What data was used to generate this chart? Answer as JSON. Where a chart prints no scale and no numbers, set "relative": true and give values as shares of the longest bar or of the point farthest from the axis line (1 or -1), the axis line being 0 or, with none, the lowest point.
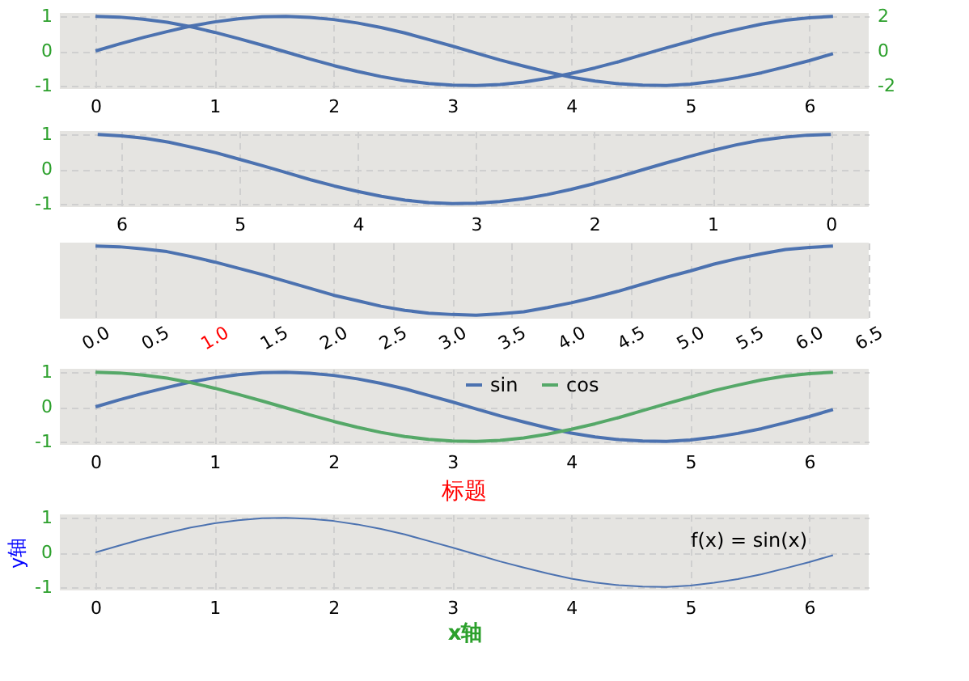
{
  "chart_data": [
    {
      "type": "line",
      "x": [
        0,
        0.2,
        0.4,
        0.6,
        0.8,
        1.0,
        1.2,
        1.4,
        1.6,
        1.8,
        2.0,
        2.2,
        2.4,
        2.6,
        2.8,
        3.0,
        3.2,
        3.4,
        3.6,
        3.8,
        4.0,
        4.2,
        4.4,
        4.6,
        4.8,
        5.0,
        5.2,
        5.4,
        5.6,
        5.8,
        6.0,
        6.2
      ],
      "series": [
        {
          "color": "#4c72b0",
          "values": [
            0,
            0.2,
            0.39,
            0.56,
            0.72,
            0.84,
            0.93,
            0.99,
            1.0,
            0.97,
            0.91,
            0.81,
            0.68,
            0.52,
            0.33,
            0.14,
            -0.06,
            -0.26,
            -0.44,
            -0.61,
            -0.76,
            -0.87,
            -0.95,
            -0.99,
            -1.0,
            -0.96,
            -0.88,
            -0.77,
            -0.63,
            -0.46,
            -0.28,
            -0.08
          ]
        },
        {
          "color": "#4c72b0",
          "values": [
            1,
            0.98,
            0.92,
            0.83,
            0.7,
            0.54,
            0.36,
            0.17,
            -0.03,
            -0.23,
            -0.42,
            -0.59,
            -0.74,
            -0.86,
            -0.94,
            -0.99,
            -1.0,
            -0.97,
            -0.9,
            -0.79,
            -0.65,
            -0.49,
            -0.31,
            -0.11,
            0.09,
            0.28,
            0.47,
            0.63,
            0.78,
            0.89,
            0.96,
            1.0
          ]
        }
      ],
      "xlim": [
        -0.3,
        6.5
      ],
      "xticks": [
        0,
        1,
        2,
        3,
        4,
        5,
        6
      ],
      "ylim": [
        -1.1,
        1.1
      ],
      "yticks": [
        -1,
        0,
        1
      ],
      "y2lim": [
        -2.2,
        2.2
      ],
      "y2ticks": [
        -2,
        0,
        2
      ],
      "grid": true,
      "line_style": "solid"
    },
    {
      "type": "line",
      "x": [
        0,
        0.2,
        0.4,
        0.6,
        0.8,
        1.0,
        1.2,
        1.4,
        1.6,
        1.8,
        2.0,
        2.2,
        2.4,
        2.6,
        2.8,
        3.0,
        3.2,
        3.4,
        3.6,
        3.8,
        4.0,
        4.2,
        4.4,
        4.6,
        4.8,
        5.0,
        5.2,
        5.4,
        5.6,
        5.8,
        6.0,
        6.2
      ],
      "series": [
        {
          "color": "#4c72b0",
          "values": [
            1,
            0.98,
            0.92,
            0.83,
            0.7,
            0.54,
            0.36,
            0.17,
            -0.03,
            -0.23,
            -0.42,
            -0.59,
            -0.74,
            -0.86,
            -0.94,
            -0.99,
            -1.0,
            -0.97,
            -0.9,
            -0.79,
            -0.65,
            -0.49,
            -0.31,
            -0.11,
            0.09,
            0.28,
            0.47,
            0.63,
            0.78,
            0.89,
            0.96,
            1.0
          ]
        }
      ],
      "xlim": [
        6.52,
        -0.32
      ],
      "xticks": [
        0,
        1,
        2,
        3,
        4,
        5,
        6
      ],
      "ylim": [
        -1.1,
        1.1
      ],
      "yticks": [
        -1,
        0,
        1
      ],
      "grid": true,
      "line_style": "solid"
    },
    {
      "type": "line",
      "x": [
        0,
        0.2,
        0.4,
        0.6,
        0.8,
        1.0,
        1.2,
        1.4,
        1.6,
        1.8,
        2.0,
        2.2,
        2.4,
        2.6,
        2.8,
        3.0,
        3.2,
        3.4,
        3.6,
        3.8,
        4.0,
        4.2,
        4.4,
        4.6,
        4.8,
        5.0,
        5.2,
        5.4,
        5.6,
        5.8,
        6.0,
        6.2
      ],
      "series": [
        {
          "color": "#4c72b0",
          "values": [
            1,
            0.99,
            0.96,
            0.92,
            0.85,
            0.77,
            0.68,
            0.59,
            0.49,
            0.39,
            0.29,
            0.21,
            0.13,
            0.07,
            0.03,
            0.01,
            0,
            0.02,
            0.05,
            0.11,
            0.18,
            0.26,
            0.35,
            0.45,
            0.55,
            0.64,
            0.74,
            0.82,
            0.89,
            0.95,
            0.98,
            1
          ]
        }
      ],
      "relative": true,
      "xlim": [
        -0.3,
        6.5
      ],
      "xticks": [
        {
          "value": 0,
          "label": "0.0"
        },
        {
          "value": 0.5,
          "label": "0.5"
        },
        {
          "value": 1,
          "label": "1.0"
        },
        {
          "value": 1.5,
          "label": "1.5"
        },
        {
          "value": 2,
          "label": "2.0"
        },
        {
          "value": 2.5,
          "label": "2.5"
        },
        {
          "value": 3,
          "label": "3.0"
        },
        {
          "value": 3.5,
          "label": "3.5"
        },
        {
          "value": 4,
          "label": "4.0"
        },
        {
          "value": 4.5,
          "label": "4.5"
        },
        {
          "value": 5,
          "label": "5.0"
        },
        {
          "value": 5.5,
          "label": "5.5"
        },
        {
          "value": 6,
          "label": "6.0"
        },
        {
          "value": 6.5,
          "label": "6.5"
        }
      ],
      "tick_labels": "x",
      "grid": "x",
      "line_style": "solid"
    },
    {
      "type": "line",
      "x": [
        0,
        0.2,
        0.4,
        0.6,
        0.8,
        1.0,
        1.2,
        1.4,
        1.6,
        1.8,
        2.0,
        2.2,
        2.4,
        2.6,
        2.8,
        3.0,
        3.2,
        3.4,
        3.6,
        3.8,
        4.0,
        4.2,
        4.4,
        4.6,
        4.8,
        5.0,
        5.2,
        5.4,
        5.6,
        5.8,
        6.0,
        6.2
      ],
      "series": [
        {
          "name": "sin",
          "color": "#4c72b0",
          "values": [
            0,
            0.2,
            0.39,
            0.56,
            0.72,
            0.84,
            0.93,
            0.99,
            1.0,
            0.97,
            0.91,
            0.81,
            0.68,
            0.52,
            0.33,
            0.14,
            -0.06,
            -0.26,
            -0.44,
            -0.61,
            -0.76,
            -0.87,
            -0.95,
            -0.99,
            -1.0,
            -0.96,
            -0.88,
            -0.77,
            -0.63,
            -0.46,
            -0.28,
            -0.08
          ]
        },
        {
          "name": "cos",
          "color": "#55a868",
          "values": [
            1,
            0.98,
            0.92,
            0.83,
            0.7,
            0.54,
            0.36,
            0.17,
            -0.03,
            -0.23,
            -0.42,
            -0.59,
            -0.74,
            -0.86,
            -0.94,
            -0.99,
            -1.0,
            -0.97,
            -0.9,
            -0.79,
            -0.65,
            -0.49,
            -0.31,
            -0.11,
            0.09,
            0.28,
            0.47,
            0.63,
            0.78,
            0.89,
            0.96,
            1.0
          ]
        }
      ],
      "xlim": [
        -0.3,
        6.5
      ],
      "xticks": [
        0,
        1,
        2,
        3,
        4,
        5,
        6
      ],
      "ylim": [
        -1.1,
        1.1
      ],
      "yticks": [
        -1,
        0,
        1
      ],
      "grid": true,
      "legend": "top",
      "line_style": "solid"
    },
    {
      "type": "line",
      "title": "标题",
      "xlabel": "x轴",
      "ylabel": "y轴",
      "annotations": [
        "f(x) = sin(x)"
      ],
      "x": [
        0,
        0.2,
        0.4,
        0.6,
        0.8,
        1.0,
        1.2,
        1.4,
        1.6,
        1.8,
        2.0,
        2.2,
        2.4,
        2.6,
        2.8,
        3.0,
        3.2,
        3.4,
        3.6,
        3.8,
        4.0,
        4.2,
        4.4,
        4.6,
        4.8,
        5.0,
        5.2,
        5.4,
        5.6,
        5.8,
        6.0,
        6.2
      ],
      "series": [
        {
          "color": "#4c72b0",
          "values": [
            0,
            0.2,
            0.39,
            0.56,
            0.72,
            0.84,
            0.93,
            0.99,
            1.0,
            0.97,
            0.91,
            0.81,
            0.68,
            0.52,
            0.33,
            0.14,
            -0.06,
            -0.26,
            -0.44,
            -0.61,
            -0.76,
            -0.87,
            -0.95,
            -0.99,
            -1.0,
            -0.96,
            -0.88,
            -0.77,
            -0.63,
            -0.46,
            -0.28,
            -0.08
          ]
        }
      ],
      "xlim": [
        -0.3,
        6.5
      ],
      "xticks": [
        0,
        1,
        2,
        3,
        4,
        5,
        6
      ],
      "ylim": [
        -1.1,
        1.1
      ],
      "yticks": [
        -1,
        0,
        1
      ],
      "grid": true,
      "line_style": "solid"
    }
  ]
}
